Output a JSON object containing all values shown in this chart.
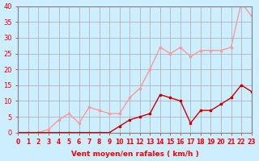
{
  "title": "",
  "xlabel": "Vent moyen/en rafales ( km/h )",
  "ylabel": "",
  "bg_color": "#cceeff",
  "grid_color": "#aaaaaa",
  "line1_color": "#ff9999",
  "line2_color": "#cc0000",
  "xlim": [
    0,
    23
  ],
  "ylim": [
    0,
    40
  ],
  "xticks": [
    0,
    1,
    2,
    3,
    4,
    5,
    6,
    7,
    8,
    9,
    10,
    11,
    12,
    13,
    14,
    15,
    16,
    17,
    18,
    19,
    20,
    21,
    22,
    23
  ],
  "yticks": [
    0,
    5,
    10,
    15,
    20,
    25,
    30,
    35,
    40
  ],
  "line1_x": [
    0,
    1,
    2,
    3,
    4,
    5,
    6,
    7,
    8,
    9,
    10,
    11,
    12,
    13,
    14,
    15,
    16,
    17,
    18,
    19,
    20,
    21,
    22,
    23
  ],
  "line1_y": [
    0,
    0,
    0,
    1,
    4,
    6,
    3,
    8,
    7,
    6,
    6,
    11,
    14,
    20,
    27,
    25,
    27,
    24,
    26,
    26,
    26,
    27,
    41,
    37
  ],
  "line2_x": [
    0,
    1,
    2,
    3,
    4,
    5,
    6,
    7,
    8,
    9,
    10,
    11,
    12,
    13,
    14,
    15,
    16,
    17,
    18,
    19,
    20,
    21,
    22,
    23
  ],
  "line2_y": [
    0,
    0,
    0,
    0,
    0,
    0,
    0,
    0,
    0,
    0,
    2,
    4,
    5,
    6,
    12,
    11,
    10,
    3,
    7,
    7,
    9,
    11,
    15,
    13
  ]
}
